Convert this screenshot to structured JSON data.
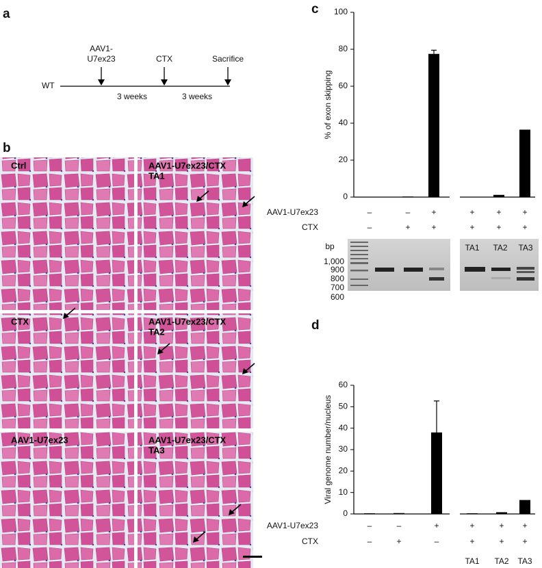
{
  "panel_labels": [
    "a",
    "b",
    "c",
    "d"
  ],
  "timeline": {
    "start": "WT",
    "events": [
      {
        "lines": [
          "AAV1-",
          "U7ex23"
        ]
      },
      {
        "lines": [
          "CTX"
        ]
      },
      {
        "lines": [
          "Sacrifice"
        ]
      }
    ],
    "intervals": [
      "3 weeks",
      "3 weeks"
    ]
  },
  "histology": [
    {
      "lines": [
        "Ctrl"
      ]
    },
    {
      "lines": [
        "AAV1-U7ex23/CTX",
        "TA1"
      ]
    },
    {
      "lines": [
        "CTX"
      ]
    },
    {
      "lines": [
        "AAV1-U7ex23/CTX",
        "TA2"
      ]
    },
    {
      "lines": [
        "AAV1-U7ex23"
      ]
    },
    {
      "lines": [
        "AAV1-U7ex23/CTX",
        "TA3"
      ]
    }
  ],
  "gel": {
    "unit": "bp",
    "markers": [
      "1,000",
      "900",
      "800",
      "700",
      "600"
    ],
    "lanes": [
      "TA1",
      "TA2",
      "TA3"
    ]
  },
  "chart_data": [
    {
      "type": "bar",
      "ylabel": "% of exon skipping",
      "categories": [
        null,
        null,
        null,
        null,
        null,
        null
      ],
      "values": [
        0,
        0.3,
        77.5,
        0,
        1.2,
        36.5
      ],
      "errors": [
        null,
        null,
        2,
        null,
        null,
        null
      ],
      "color": "#000000",
      "ylim": [
        0,
        100
      ],
      "yticks": [
        0,
        20,
        40,
        60,
        80,
        100
      ],
      "conditions": [
        {
          "name": "AAV1-U7ex23",
          "values": [
            "–",
            "–",
            "+",
            "+",
            "+",
            "+"
          ]
        },
        {
          "name": "CTX",
          "values": [
            "–",
            "+",
            "+",
            "+",
            "+",
            "+"
          ]
        }
      ]
    },
    {
      "type": "bar",
      "ylabel": "Viral genome number/nucleus",
      "categories": [
        null,
        null,
        null,
        "TA1",
        "TA2",
        "TA3"
      ],
      "values": [
        0.3,
        0.4,
        38,
        0.3,
        0.8,
        6.5
      ],
      "errors": [
        null,
        null,
        14.7,
        null,
        null,
        null
      ],
      "color": "#000000",
      "ylim": [
        0,
        60
      ],
      "yticks": [
        0,
        10,
        20,
        30,
        40,
        50,
        60
      ],
      "conditions": [
        {
          "name": "AAV1-U7ex23",
          "values": [
            "–",
            "–",
            "+",
            "+",
            "+",
            "+"
          ]
        },
        {
          "name": "CTX",
          "values": [
            "–",
            "+",
            "–",
            "+",
            "+",
            "+"
          ]
        }
      ]
    }
  ]
}
